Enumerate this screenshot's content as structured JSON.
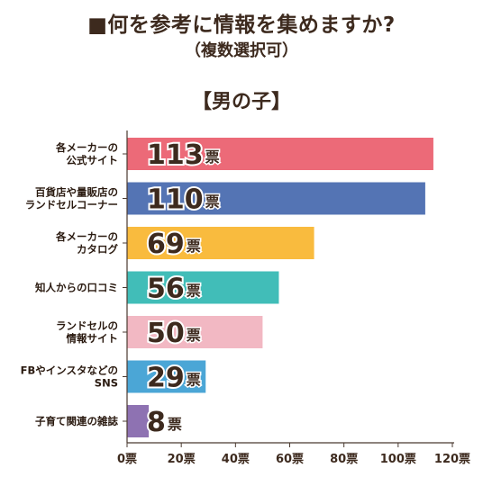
{
  "header": {
    "title": "■何を参考に情報を集めますか?",
    "subtitle": "（複数選択可）",
    "group_label": "【男の子】"
  },
  "chart_data": {
    "type": "bar",
    "orientation": "horizontal",
    "categories": [
      [
        "各メーカーの",
        "公式サイト"
      ],
      [
        "百貨店や量販店の",
        "ランドセルコーナー"
      ],
      [
        "各メーカーの",
        "カタログ"
      ],
      [
        "知人からの口コミ"
      ],
      [
        "ランドセルの",
        "情報サイト"
      ],
      [
        "FBやインスタなどの",
        "SNS"
      ],
      [
        "子育て関連の雑誌"
      ]
    ],
    "values": [
      113,
      110,
      69,
      56,
      50,
      29,
      8
    ],
    "unit": "票",
    "colors": [
      "#ec6a78",
      "#5474b4",
      "#f9bb3e",
      "#41bdb8",
      "#f2b8c3",
      "#4ba6d6",
      "#8e72b2"
    ],
    "xlim": [
      0,
      120
    ],
    "xticks": [
      0,
      20,
      40,
      60,
      80,
      100,
      120
    ],
    "xtick_labels": [
      "0票",
      "20票",
      "40票",
      "60票",
      "80票",
      "100票",
      "120票"
    ],
    "grid": false,
    "legend": "none"
  }
}
